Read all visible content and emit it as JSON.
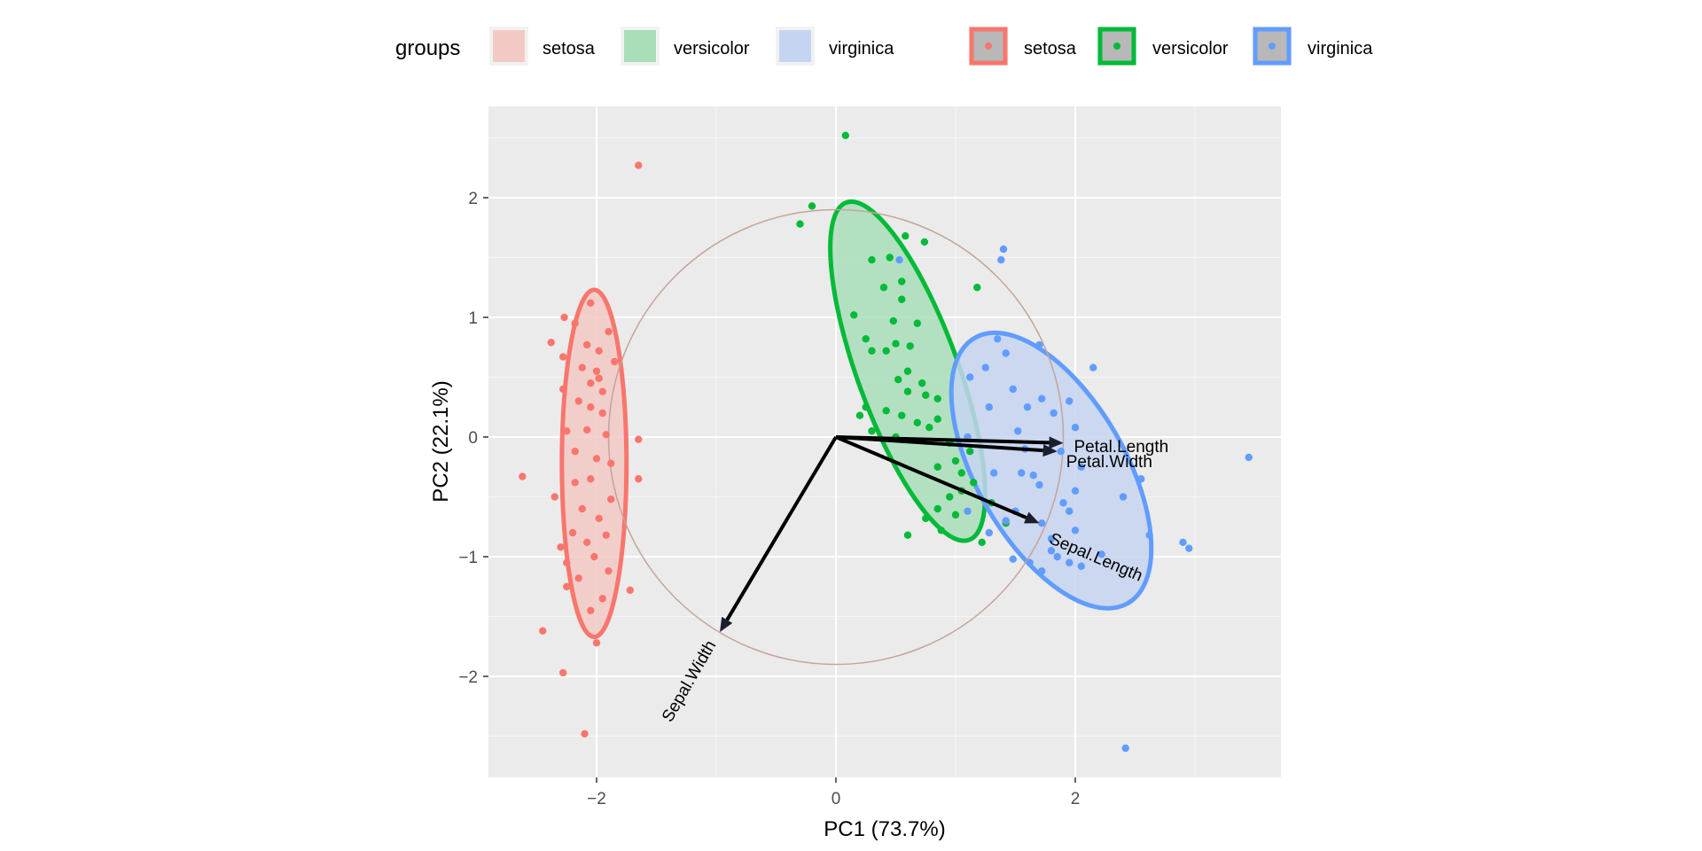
{
  "chart_data": {
    "type": "scatter",
    "subtype": "pca-biplot",
    "xlabel": "PC1 (73.7%)",
    "ylabel": "PC2 (22.1%)",
    "xlim": [
      -2.9,
      3.7
    ],
    "ylim": [
      -2.85,
      2.75
    ],
    "xticks": [
      -2,
      0,
      2
    ],
    "yticks": [
      -2,
      -1,
      0,
      1,
      2
    ],
    "grid": true,
    "legend": {
      "title": "groups",
      "position": "top",
      "fill_entries": [
        "setosa",
        "versicolor",
        "virginica"
      ],
      "color_entries": [
        "setosa",
        "versicolor",
        "virginica"
      ]
    },
    "groups": [
      {
        "name": "setosa",
        "color": "#F8766D",
        "fill": "#F3C9C5",
        "ellipse": {
          "cx": -2.02,
          "cy": -0.22,
          "ra": 0.27,
          "rb": 1.45,
          "angle_deg": 0
        },
        "points": [
          [
            -2.27,
            1.0
          ],
          [
            -2.05,
            1.12
          ],
          [
            -2.18,
            0.95
          ],
          [
            -1.9,
            0.88
          ],
          [
            -2.38,
            0.79
          ],
          [
            -2.08,
            0.77
          ],
          [
            -1.98,
            0.72
          ],
          [
            -2.28,
            0.67
          ],
          [
            -1.85,
            0.63
          ],
          [
            -2.12,
            0.58
          ],
          [
            -2.0,
            0.55
          ],
          [
            -1.98,
            0.49
          ],
          [
            -2.05,
            0.45
          ],
          [
            -2.28,
            0.4
          ],
          [
            -1.95,
            0.38
          ],
          [
            -2.15,
            0.3
          ],
          [
            -2.05,
            0.25
          ],
          [
            -1.95,
            0.2
          ],
          [
            -1.92,
            0.02
          ],
          [
            -2.25,
            0.05
          ],
          [
            -2.08,
            0.06
          ],
          [
            -1.65,
            -0.02
          ],
          [
            -2.18,
            -0.12
          ],
          [
            -2.0,
            -0.18
          ],
          [
            -1.88,
            -0.22
          ],
          [
            -2.05,
            -0.35
          ],
          [
            -1.65,
            -0.35
          ],
          [
            -2.18,
            -0.38
          ],
          [
            -2.35,
            -0.5
          ],
          [
            -1.88,
            -0.52
          ],
          [
            -2.62,
            -0.33
          ],
          [
            -2.12,
            -0.6
          ],
          [
            -1.98,
            -0.68
          ],
          [
            -2.2,
            -0.8
          ],
          [
            -1.92,
            -0.82
          ],
          [
            -2.08,
            -0.88
          ],
          [
            -2.3,
            -0.92
          ],
          [
            -2.02,
            -1.0
          ],
          [
            -2.25,
            -1.05
          ],
          [
            -1.9,
            -1.12
          ],
          [
            -2.15,
            -1.18
          ],
          [
            -2.25,
            -1.25
          ],
          [
            -1.72,
            -1.28
          ],
          [
            -1.95,
            -1.35
          ],
          [
            -2.05,
            -1.45
          ],
          [
            -2.45,
            -1.62
          ],
          [
            -2.0,
            -1.72
          ],
          [
            -2.28,
            -1.97
          ],
          [
            -2.1,
            -2.48
          ],
          [
            -1.65,
            2.27
          ]
        ]
      },
      {
        "name": "versicolor",
        "color": "#00BA38",
        "fill": "#A9DEB8",
        "ellipse": {
          "cx": 0.6,
          "cy": 0.55,
          "ra": 0.42,
          "rb": 1.5,
          "angle_deg": -20
        },
        "points": [
          [
            0.08,
            2.52
          ],
          [
            -0.2,
            1.93
          ],
          [
            -0.3,
            1.78
          ],
          [
            0.58,
            1.68
          ],
          [
            0.74,
            1.63
          ],
          [
            0.3,
            1.48
          ],
          [
            0.45,
            1.5
          ],
          [
            0.55,
            1.3
          ],
          [
            0.4,
            1.25
          ],
          [
            0.55,
            1.15
          ],
          [
            0.15,
            1.02
          ],
          [
            0.48,
            0.97
          ],
          [
            0.68,
            0.95
          ],
          [
            0.25,
            0.82
          ],
          [
            0.5,
            0.78
          ],
          [
            0.62,
            0.76
          ],
          [
            0.3,
            0.72
          ],
          [
            0.42,
            0.72
          ],
          [
            0.6,
            0.55
          ],
          [
            0.52,
            0.48
          ],
          [
            0.72,
            0.45
          ],
          [
            0.6,
            0.38
          ],
          [
            0.85,
            0.32
          ],
          [
            0.75,
            0.35
          ],
          [
            0.25,
            0.25
          ],
          [
            0.42,
            0.22
          ],
          [
            0.55,
            0.18
          ],
          [
            0.68,
            0.12
          ],
          [
            0.85,
            0.15
          ],
          [
            0.78,
            0.08
          ],
          [
            0.3,
            0.05
          ],
          [
            0.5,
            0.0
          ],
          [
            0.95,
            -0.05
          ],
          [
            1.12,
            -0.12
          ],
          [
            1.0,
            -0.2
          ],
          [
            0.85,
            -0.25
          ],
          [
            1.05,
            -0.3
          ],
          [
            1.15,
            -0.38
          ],
          [
            0.95,
            -0.5
          ],
          [
            0.85,
            -0.6
          ],
          [
            1.0,
            -0.65
          ],
          [
            0.6,
            -0.82
          ],
          [
            0.88,
            -0.78
          ],
          [
            1.22,
            -0.88
          ],
          [
            1.05,
            -0.45
          ],
          [
            1.18,
            1.25
          ],
          [
            1.42,
            -0.72
          ],
          [
            1.3,
            -0.55
          ],
          [
            0.75,
            -0.68
          ],
          [
            0.2,
            0.18
          ]
        ]
      },
      {
        "name": "virginica",
        "color": "#619CFF",
        "fill": "#C5D5F1",
        "ellipse": {
          "cx": 1.8,
          "cy": -0.28,
          "ra": 0.62,
          "rb": 1.28,
          "angle_deg": -30
        },
        "points": [
          [
            1.4,
            1.57
          ],
          [
            1.38,
            1.48
          ],
          [
            0.53,
            1.48
          ],
          [
            1.35,
            0.82
          ],
          [
            1.42,
            0.7
          ],
          [
            1.25,
            0.58
          ],
          [
            1.7,
            0.77
          ],
          [
            2.15,
            0.58
          ],
          [
            1.12,
            0.5
          ],
          [
            1.48,
            0.4
          ],
          [
            1.72,
            0.32
          ],
          [
            1.95,
            0.3
          ],
          [
            1.28,
            0.25
          ],
          [
            1.6,
            0.25
          ],
          [
            1.82,
            0.2
          ],
          [
            2.0,
            0.08
          ],
          [
            1.1,
            0.0
          ],
          [
            1.58,
            -0.1
          ],
          [
            1.88,
            -0.12
          ],
          [
            1.55,
            -0.3
          ],
          [
            1.32,
            -0.3
          ],
          [
            2.55,
            -0.35
          ],
          [
            1.65,
            -0.32
          ],
          [
            1.7,
            -0.4
          ],
          [
            2.0,
            -0.45
          ],
          [
            2.4,
            -0.5
          ],
          [
            1.5,
            -0.62
          ],
          [
            1.72,
            -0.72
          ],
          [
            1.42,
            -0.7
          ],
          [
            2.0,
            -0.78
          ],
          [
            1.8,
            -0.85
          ],
          [
            2.9,
            -0.88
          ],
          [
            2.95,
            -0.93
          ],
          [
            1.8,
            -0.95
          ],
          [
            1.48,
            -1.02
          ],
          [
            1.62,
            -1.05
          ],
          [
            1.95,
            -1.05
          ],
          [
            2.05,
            -1.08
          ],
          [
            1.72,
            -1.12
          ],
          [
            1.85,
            -1.0
          ],
          [
            2.22,
            -0.98
          ],
          [
            2.62,
            -0.82
          ],
          [
            3.45,
            -0.17
          ],
          [
            2.42,
            -2.6
          ],
          [
            1.1,
            -0.62
          ],
          [
            1.28,
            -0.8
          ],
          [
            1.95,
            -0.62
          ],
          [
            2.05,
            -0.25
          ],
          [
            1.52,
            0.05
          ],
          [
            1.9,
            -0.55
          ]
        ]
      }
    ],
    "correlation_circle": {
      "cx": 0.0,
      "cy": 0.0,
      "r": 1.9,
      "color": "#C5A49A"
    },
    "variables": [
      {
        "name": "Petal.Length",
        "x": 1.9,
        "y": -0.05
      },
      {
        "name": "Petal.Width",
        "x": 1.85,
        "y": -0.12
      },
      {
        "name": "Sepal.Length",
        "x": 1.7,
        "y": -0.72
      },
      {
        "name": "Sepal.Width",
        "x": -0.97,
        "y": -1.63
      }
    ]
  }
}
